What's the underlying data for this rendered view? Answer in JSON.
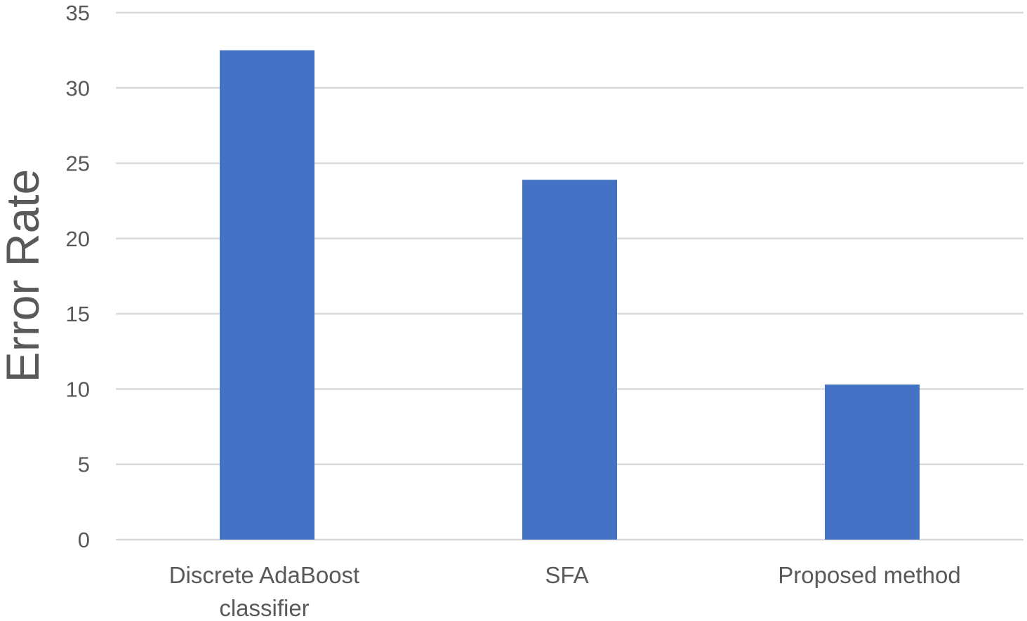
{
  "chart_data": {
    "type": "bar",
    "categories": [
      "Discrete AdaBoost classifier",
      "SFA",
      "Proposed method"
    ],
    "category_lines": [
      [
        "Discrete AdaBoost",
        "classifier"
      ],
      [
        "SFA"
      ],
      [
        "Proposed method"
      ]
    ],
    "series": [
      {
        "values": [
          32.5,
          23.9,
          10.3
        ],
        "color": "#4472c4"
      }
    ],
    "ylabel": "Error Rate",
    "xlabel": "",
    "ylim": [
      0,
      35
    ],
    "yticks": [
      0,
      5,
      10,
      15,
      20,
      25,
      30,
      35
    ],
    "grid": true,
    "legend": "none",
    "colors": {
      "bar": "#4472c4",
      "grid": "#d9d9d9",
      "text": "#595959"
    }
  }
}
